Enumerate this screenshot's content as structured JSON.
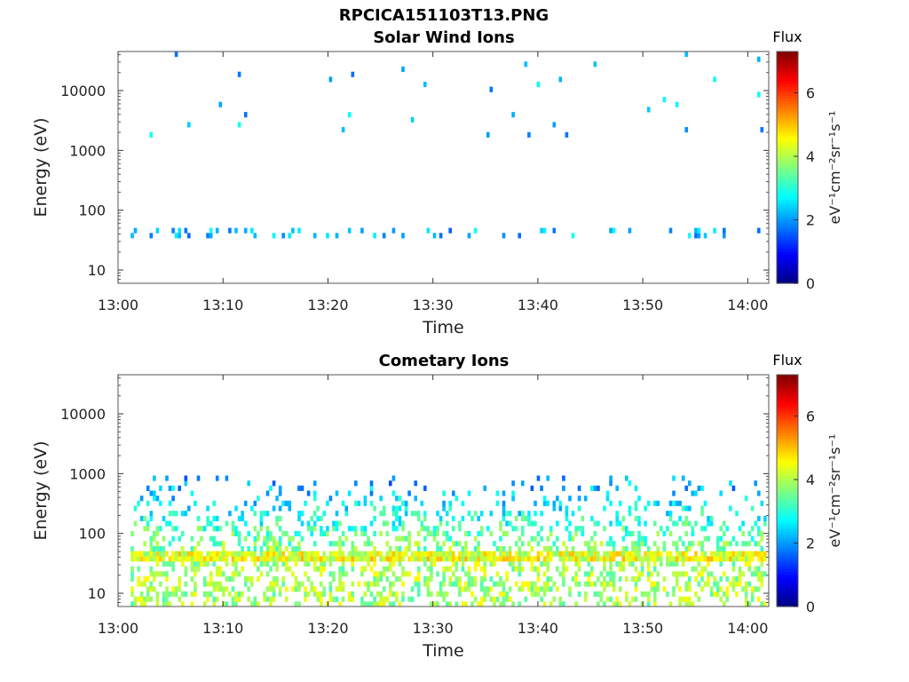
{
  "figure": {
    "title": "RPCICA151103T13.PNG"
  },
  "chart_data": [
    {
      "type": "heatmap",
      "title": "Solar Wind Ions",
      "xlabel": "Time",
      "ylabel": "Energy (eV)",
      "x_ticks": [
        "13:00",
        "13:10",
        "13:20",
        "13:30",
        "13:40",
        "13:50",
        "14:00"
      ],
      "xlim": [
        "13:00",
        "14:02"
      ],
      "y_ticks": [
        "10",
        "100",
        "1000",
        "10000"
      ],
      "ylim": [
        6,
        45000
      ],
      "y_scale": "log",
      "colorbar": {
        "title": "Flux",
        "label": "eV⁻¹cm⁻²sr⁻¹s⁻¹",
        "ticks": [
          "0",
          "2",
          "4",
          "6"
        ],
        "range": [
          0,
          7.3
        ],
        "colormap": "jet"
      },
      "bursts_minutes": [
        2.8,
        6.5,
        9.8,
        12.9,
        16.1,
        19.0,
        22.3,
        25.4,
        28.3,
        31.5,
        34.8,
        37.8,
        41.0,
        44.2,
        47.3,
        50.5,
        53.6,
        56.7,
        59.9
      ],
      "intensity_range": [
        1.0,
        4.6
      ]
    },
    {
      "type": "heatmap",
      "title": "Cometary Ions",
      "xlabel": "Time",
      "ylabel": "Energy (eV)",
      "x_ticks": [
        "13:00",
        "13:10",
        "13:20",
        "13:30",
        "13:40",
        "13:50",
        "14:00"
      ],
      "xlim": [
        "13:00",
        "14:02"
      ],
      "y_ticks": [
        "10",
        "100",
        "1000",
        "10000"
      ],
      "ylim": [
        6,
        45000
      ],
      "y_scale": "log",
      "colorbar": {
        "title": "Flux",
        "label": "eV⁻¹cm⁻²sr⁻¹s⁻¹",
        "ticks": [
          "0",
          "2",
          "4",
          "6"
        ],
        "range": [
          0,
          7.3
        ],
        "colormap": "jet"
      },
      "bursts_minutes": [
        2.8,
        6.5,
        9.8,
        12.9,
        16.1,
        19.0,
        22.3,
        25.4,
        28.3,
        31.5,
        34.8,
        37.8,
        41.0,
        44.2,
        47.3,
        50.5,
        53.6,
        56.7,
        59.9
      ],
      "intensity_range": [
        2.0,
        6.8
      ]
    }
  ]
}
